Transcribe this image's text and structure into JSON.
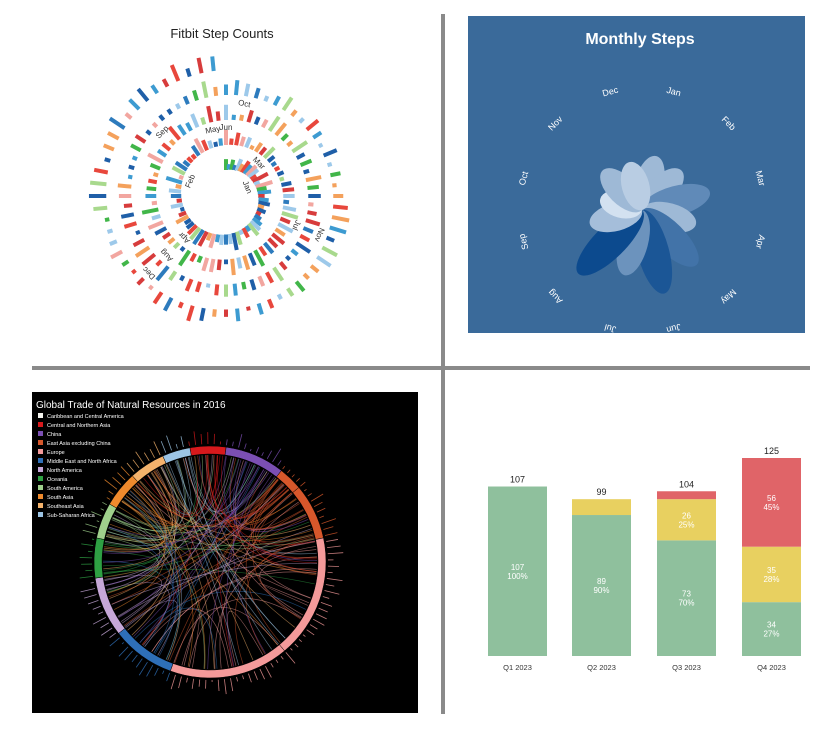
{
  "chart_data": [
    {
      "type": "bar",
      "form": "spiral",
      "title": "Fitbit Step Counts",
      "month_labels": [
        "Jan",
        "Feb",
        "Mar",
        "Apr",
        "May",
        "Jun",
        "Jul",
        "Aug",
        "Sep",
        "Oct",
        "Nov",
        "Dec"
      ],
      "turns": 4,
      "bars_per_turn": 64,
      "palette": [
        "#e8473c",
        "#f2a6a0",
        "#3d9bd1",
        "#1f5fa8",
        "#9dc9ea",
        "#41b649",
        "#a8d98d",
        "#f4a15c",
        "#2d7bbd",
        "#d73c3c"
      ]
    },
    {
      "type": "bar",
      "form": "radial-petal",
      "title": "Monthly Steps",
      "categories": [
        "Jan",
        "Feb",
        "Mar",
        "Apr",
        "May",
        "Jun",
        "Jul",
        "Aug",
        "Sep",
        "Oct",
        "Nov",
        "Dec"
      ],
      "values": [
        0.62,
        0.62,
        0.78,
        0.62,
        0.86,
        0.96,
        0.75,
        1.0,
        0.6,
        0.48,
        0.62,
        0.55
      ],
      "colors": {
        "background": "#3a6a9a",
        "low": "#dfeaf6",
        "high": "#0c4a8e"
      }
    },
    {
      "type": "chord",
      "title": "Global Trade of Natural Resources in 2016",
      "legend": [
        {
          "name": "Caribbean and Central America",
          "color": "#f5f5f0"
        },
        {
          "name": "Central and Northern Asia",
          "color": "#d7191c"
        },
        {
          "name": "China",
          "color": "#7b4fb3"
        },
        {
          "name": "East Asia excluding China",
          "color": "#d7572b"
        },
        {
          "name": "Europe",
          "color": "#f49a9a"
        },
        {
          "name": "Middle East and North Africa",
          "color": "#2e6fb8"
        },
        {
          "name": "North America",
          "color": "#c6a7d8"
        },
        {
          "name": "Oceania",
          "color": "#2ea043"
        },
        {
          "name": "South America",
          "color": "#9fd08c"
        },
        {
          "name": "South Asia",
          "color": "#ef8a2d"
        },
        {
          "name": "Southeast Asia",
          "color": "#f5b36c"
        },
        {
          "name": "Sub-Saharan Africa",
          "color": "#9cc4e4"
        }
      ],
      "colors": {
        "background": "#000000"
      }
    },
    {
      "type": "bar",
      "form": "stacked",
      "categories": [
        "Q1 2023",
        "Q2 2023",
        "Q3 2023",
        "Q4 2023"
      ],
      "totals": [
        "107",
        "99",
        "104",
        "125"
      ],
      "total_values": [
        107,
        99,
        104,
        125
      ],
      "series": [
        {
          "values": [
            107,
            89,
            73,
            34
          ],
          "labels": [
            "107\n100%",
            "89\n90%",
            "73\n70%",
            "34\n27%"
          ],
          "color": "#8fc09d"
        },
        {
          "values": [
            0,
            10,
            26,
            35
          ],
          "labels": [
            "",
            "",
            "26\n25%",
            "35\n28%"
          ],
          "color": "#e8d060"
        },
        {
          "values": [
            0,
            0,
            5,
            56
          ],
          "labels": [
            "",
            "",
            "",
            "56\n45%"
          ],
          "color": "#e06468"
        }
      ],
      "ylim": [
        0,
        125
      ]
    }
  ]
}
